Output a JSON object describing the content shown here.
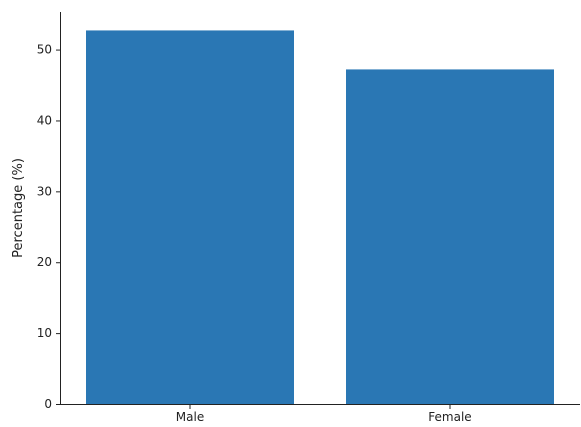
{
  "chart_data": {
    "type": "bar",
    "title": "",
    "xlabel": "",
    "ylabel": "Percentage (%)",
    "categories": [
      "Male",
      "Female"
    ],
    "values": [
      52.7,
      47.2
    ],
    "ylim": [
      0,
      55.3
    ],
    "yticks": [
      0,
      10,
      20,
      30,
      40,
      50
    ],
    "bar_color": "#2a77b4",
    "grid": false,
    "legend": "none"
  }
}
